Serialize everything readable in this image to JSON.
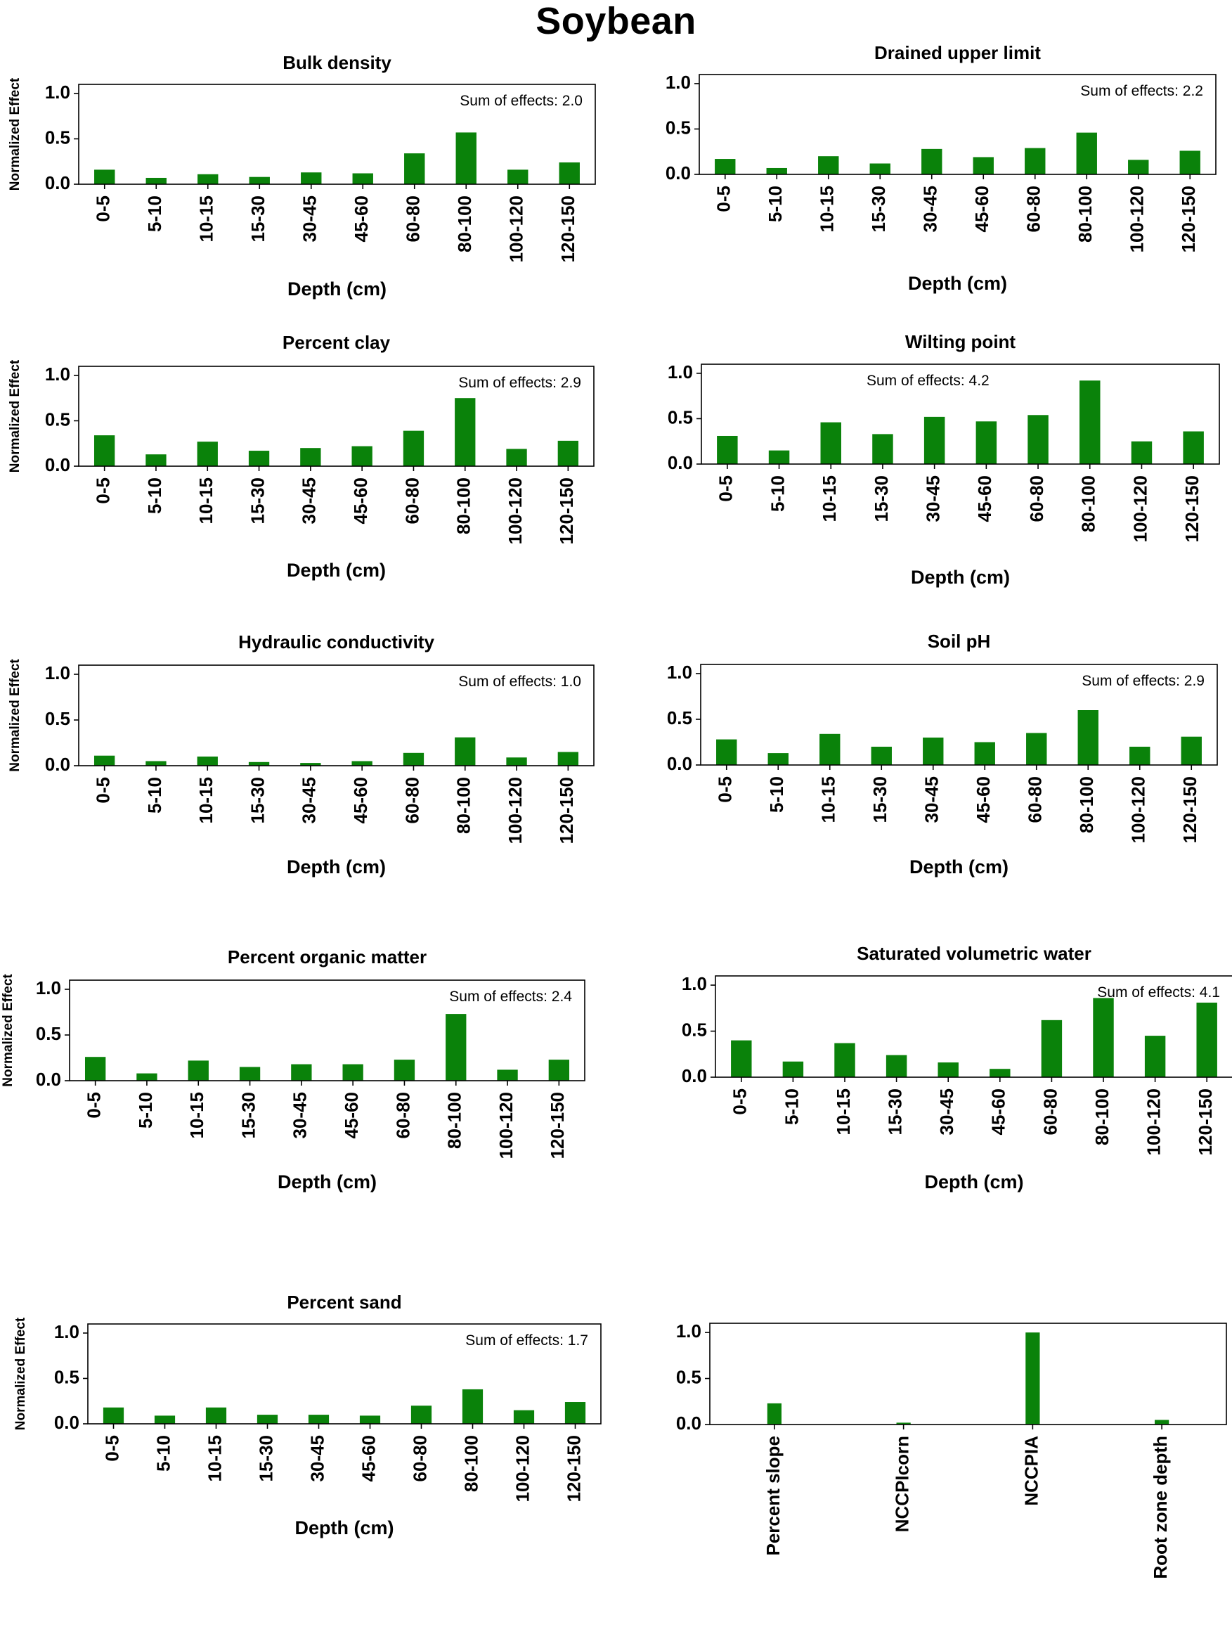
{
  "page_title": "Soybean",
  "colors": {
    "bar": "#0a820a",
    "axis": "#000000",
    "background": "#ffffff"
  },
  "chart_data": [
    {
      "type": "bar",
      "title": "Bulk density",
      "xlabel": "Depth (cm)",
      "ylabel": "Normalized Effect",
      "ylim": [
        0,
        1.1
      ],
      "yticks": [
        "0.0",
        "0.5",
        "1.0"
      ],
      "categories": [
        "0-5",
        "5-10",
        "10-15",
        "15-30",
        "30-45",
        "45-60",
        "60-80",
        "80-100",
        "100-120",
        "120-150"
      ],
      "values": [
        0.16,
        0.07,
        0.11,
        0.08,
        0.13,
        0.12,
        0.34,
        0.57,
        0.16,
        0.24
      ],
      "annotation": "Sum of effects: 2.0"
    },
    {
      "type": "bar",
      "title": "Drained upper limit",
      "xlabel": "Depth (cm)",
      "ylabel": "",
      "ylim": [
        0,
        1.1
      ],
      "yticks": [
        "0.0",
        "0.5",
        "1.0"
      ],
      "categories": [
        "0-5",
        "5-10",
        "10-15",
        "15-30",
        "30-45",
        "45-60",
        "60-80",
        "80-100",
        "100-120",
        "120-150"
      ],
      "values": [
        0.17,
        0.07,
        0.2,
        0.12,
        0.28,
        0.19,
        0.29,
        0.46,
        0.16,
        0.26
      ],
      "annotation": "Sum of effects: 2.2"
    },
    {
      "type": "bar",
      "title": "Percent clay",
      "xlabel": "Depth (cm)",
      "ylabel": "Normalized Effect",
      "ylim": [
        0,
        1.1
      ],
      "yticks": [
        "0.0",
        "0.5",
        "1.0"
      ],
      "categories": [
        "0-5",
        "5-10",
        "10-15",
        "15-30",
        "30-45",
        "45-60",
        "60-80",
        "80-100",
        "100-120",
        "120-150"
      ],
      "values": [
        0.34,
        0.13,
        0.27,
        0.17,
        0.2,
        0.22,
        0.39,
        0.75,
        0.19,
        0.28
      ],
      "annotation": "Sum of effects: 2.9"
    },
    {
      "type": "bar",
      "title": "Wilting point",
      "xlabel": "Depth (cm)",
      "ylabel": "",
      "ylim": [
        0,
        1.1
      ],
      "yticks": [
        "0.0",
        "0.5",
        "1.0"
      ],
      "categories": [
        "0-5",
        "5-10",
        "10-15",
        "15-30",
        "30-45",
        "45-60",
        "60-80",
        "80-100",
        "100-120",
        "120-150"
      ],
      "values": [
        0.31,
        0.15,
        0.46,
        0.33,
        0.52,
        0.47,
        0.54,
        0.92,
        0.25,
        0.36
      ],
      "annotation": "Sum of effects: 4.2"
    },
    {
      "type": "bar",
      "title": "Hydraulic conductivity",
      "xlabel": "Depth (cm)",
      "ylabel": "Normalized Effect",
      "ylim": [
        0,
        1.1
      ],
      "yticks": [
        "0.0",
        "0.5",
        "1.0"
      ],
      "categories": [
        "0-5",
        "5-10",
        "10-15",
        "15-30",
        "30-45",
        "45-60",
        "60-80",
        "80-100",
        "100-120",
        "120-150"
      ],
      "values": [
        0.11,
        0.05,
        0.1,
        0.04,
        0.03,
        0.05,
        0.14,
        0.31,
        0.09,
        0.15
      ],
      "annotation": "Sum of effects: 1.0"
    },
    {
      "type": "bar",
      "title": "Soil pH",
      "xlabel": "Depth (cm)",
      "ylabel": "",
      "ylim": [
        0,
        1.1
      ],
      "yticks": [
        "0.0",
        "0.5",
        "1.0"
      ],
      "categories": [
        "0-5",
        "5-10",
        "10-15",
        "15-30",
        "30-45",
        "45-60",
        "60-80",
        "80-100",
        "100-120",
        "120-150"
      ],
      "values": [
        0.28,
        0.13,
        0.34,
        0.2,
        0.3,
        0.25,
        0.35,
        0.6,
        0.2,
        0.31
      ],
      "annotation": "Sum of effects: 2.9"
    },
    {
      "type": "bar",
      "title": "Percent organic matter",
      "xlabel": "Depth (cm)",
      "ylabel": "Normalized Effect",
      "ylim": [
        0,
        1.1
      ],
      "yticks": [
        "0.0",
        "0.5",
        "1.0"
      ],
      "categories": [
        "0-5",
        "5-10",
        "10-15",
        "15-30",
        "30-45",
        "45-60",
        "60-80",
        "80-100",
        "100-120",
        "120-150"
      ],
      "values": [
        0.26,
        0.08,
        0.22,
        0.15,
        0.18,
        0.18,
        0.23,
        0.73,
        0.12,
        0.23
      ],
      "annotation": "Sum of effects: 2.4"
    },
    {
      "type": "bar",
      "title": "Saturated volumetric water",
      "xlabel": "Depth (cm)",
      "ylabel": "",
      "ylim": [
        0,
        1.1
      ],
      "yticks": [
        "0.0",
        "0.5",
        "1.0"
      ],
      "categories": [
        "0-5",
        "5-10",
        "10-15",
        "15-30",
        "30-45",
        "45-60",
        "60-80",
        "80-100",
        "100-120",
        "120-150"
      ],
      "values": [
        0.4,
        0.17,
        0.37,
        0.24,
        0.16,
        0.09,
        0.62,
        0.86,
        0.45,
        0.81
      ],
      "annotation": "Sum of effects: 4.1"
    },
    {
      "type": "bar",
      "title": "Percent sand",
      "xlabel": "Depth (cm)",
      "ylabel": "Normalized Effect",
      "ylim": [
        0,
        1.1
      ],
      "yticks": [
        "0.0",
        "0.5",
        "1.0"
      ],
      "categories": [
        "0-5",
        "5-10",
        "10-15",
        "15-30",
        "30-45",
        "45-60",
        "60-80",
        "80-100",
        "100-120",
        "120-150"
      ],
      "values": [
        0.18,
        0.09,
        0.18,
        0.1,
        0.1,
        0.09,
        0.2,
        0.38,
        0.15,
        0.24
      ],
      "annotation": "Sum of effects: 1.7"
    },
    {
      "type": "bar",
      "title": "",
      "xlabel": "",
      "ylabel": "",
      "ylim": [
        0,
        1.1
      ],
      "yticks": [
        "0.0",
        "0.5",
        "1.0"
      ],
      "categories": [
        "Percent slope",
        "NCCPIcorn",
        "NCCPIA",
        "Root zone depth"
      ],
      "values": [
        0.23,
        0.02,
        1.0,
        0.05
      ],
      "annotation": ""
    }
  ]
}
